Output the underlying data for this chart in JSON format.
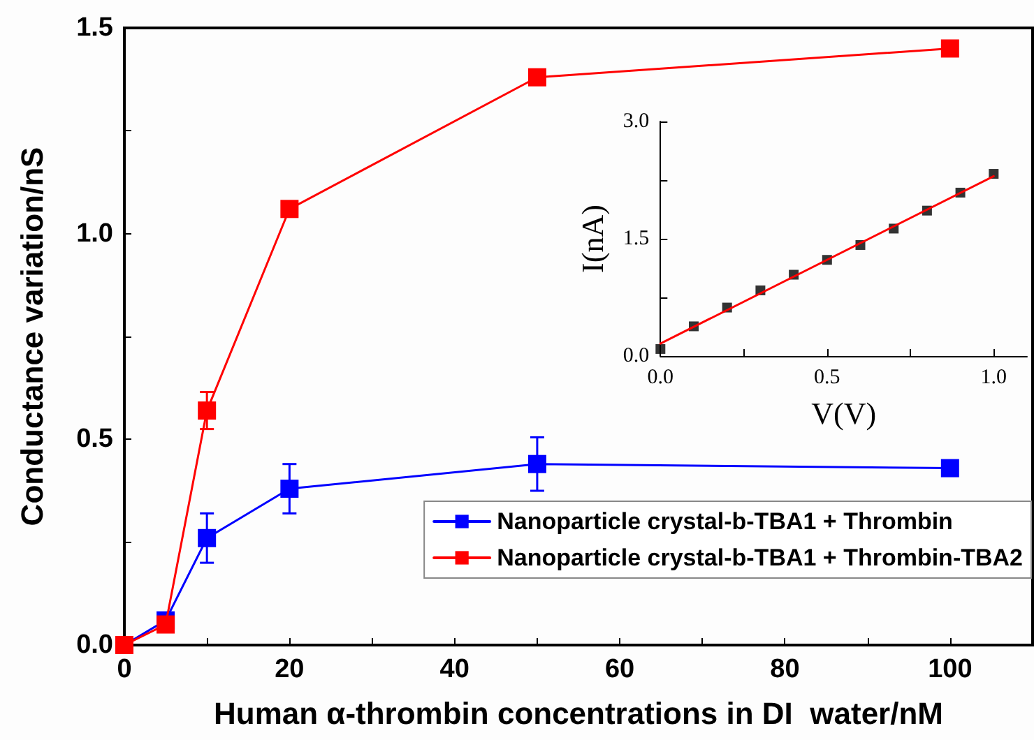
{
  "chart_data": [
    {
      "type": "line",
      "xlabel": "Human α-thrombin concentrations in DI  water/nM",
      "ylabel": "Conductance variation/nS",
      "x": [
        0,
        5,
        10,
        20,
        50,
        100
      ],
      "xlim": [
        0,
        110
      ],
      "ylim": [
        0,
        1.5
      ],
      "xticks": [
        0,
        {
          "value": 10,
          "label": null
        },
        20,
        {
          "value": 30,
          "label": null
        },
        40,
        {
          "value": 50,
          "label": null
        },
        60,
        {
          "value": 70,
          "label": null
        },
        80,
        {
          "value": 90,
          "label": null
        },
        100
      ],
      "yticks": [
        {
          "value": 0,
          "label": "0.0"
        },
        {
          "value": 0.25,
          "label": null
        },
        {
          "value": 0.5,
          "label": "0.5"
        },
        {
          "value": 0.75,
          "label": null
        },
        {
          "value": 1,
          "label": "1.0"
        },
        {
          "value": 1.25,
          "label": null
        },
        {
          "value": 1.5,
          "label": "1.5"
        }
      ],
      "marker": "square",
      "legend": "bottom right",
      "grid": false,
      "series": [
        {
          "name": "Nanoparticle crystal-b-TBA1 + Thrombin",
          "color": "#0000ff",
          "values": [
            0,
            0.06,
            0.26,
            0.38,
            0.44,
            0.43
          ],
          "errors": [
            null,
            null,
            0.06,
            0.06,
            0.065,
            null
          ]
        },
        {
          "name": "Nanoparticle crystal-b-TBA1 + Thrombin-TBA2",
          "color": "#ff0000",
          "values": [
            0,
            0.05,
            0.57,
            1.06,
            1.38,
            1.45
          ],
          "errors": [
            null,
            null,
            0.045,
            null,
            null,
            null
          ]
        }
      ]
    },
    {
      "type": "scatter",
      "xlabel": "V(V)",
      "ylabel": "I(nA)",
      "xlim": [
        0,
        1.1
      ],
      "ylim": [
        0,
        3
      ],
      "xticks": [
        {
          "value": 0,
          "label": "0.0"
        },
        {
          "value": 0.25,
          "label": null
        },
        {
          "value": 0.5,
          "label": "0.5"
        },
        {
          "value": 0.75,
          "label": null
        },
        {
          "value": 1,
          "label": "1.0"
        }
      ],
      "yticks": [
        {
          "value": 0,
          "label": "0.0"
        },
        {
          "value": 0.75,
          "label": null
        },
        {
          "value": 1.5,
          "label": "1.5"
        },
        {
          "value": 2.25,
          "label": null
        },
        {
          "value": 3,
          "label": "3.0"
        }
      ],
      "marker": "square",
      "legend": false,
      "grid": false,
      "series": [
        {
          "color": "#000000",
          "x": [
            0,
            0.1,
            0.2,
            0.3,
            0.4,
            0.5,
            0.6,
            0.7,
            0.8,
            0.9,
            1
          ],
          "values": [
            0.09,
            0.38,
            0.62,
            0.84,
            1.04,
            1.23,
            1.42,
            1.63,
            1.86,
            2.09,
            2.33
          ]
        },
        {
          "type": "line",
          "marker": "none",
          "color": "#ff0000",
          "x": [
            0,
            1
          ],
          "values": [
            0.16,
            2.3
          ]
        }
      ]
    }
  ]
}
